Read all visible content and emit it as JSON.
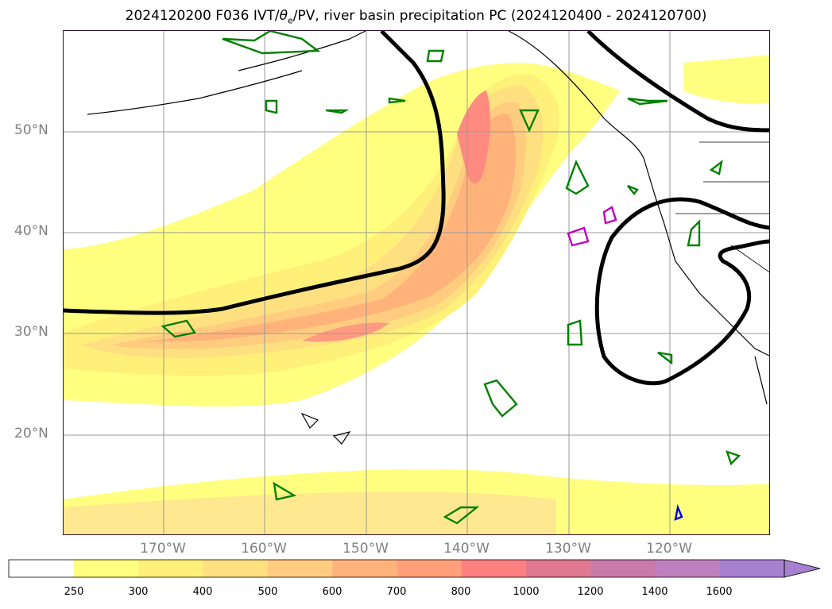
{
  "title": {
    "prefix": "2024120200 F036 IVT/",
    "theta": "θ",
    "theta_sub": "e",
    "suffix": "/PV, river basin precipitation PC (2024120400 - 2024120700)"
  },
  "map": {
    "lat_labels": [
      "50°N",
      "40°N",
      "30°N",
      "20°N"
    ],
    "lon_labels": [
      "170°W",
      "160°W",
      "150°W",
      "140°W",
      "130°W",
      "120°W"
    ],
    "field": "IVT",
    "contours": {
      "theta_e_pv": "black",
      "precip_pc_green": "#008000",
      "precip_pc_magenta": "#c000c0",
      "precip_pc_blue": "#0000e0"
    }
  },
  "colorbar": {
    "ticks": [
      "250",
      "300",
      "400",
      "500",
      "600",
      "700",
      "800",
      "1000",
      "1200",
      "1400",
      "1600"
    ],
    "colors": [
      "#ffffff",
      "#ffff80",
      "#fff07a",
      "#ffe080",
      "#ffcc80",
      "#ffb37a",
      "#ffa07a",
      "#ff8080",
      "#e07890",
      "#c87aa8",
      "#c080c0",
      "#a880d0"
    ],
    "extend": "max"
  }
}
